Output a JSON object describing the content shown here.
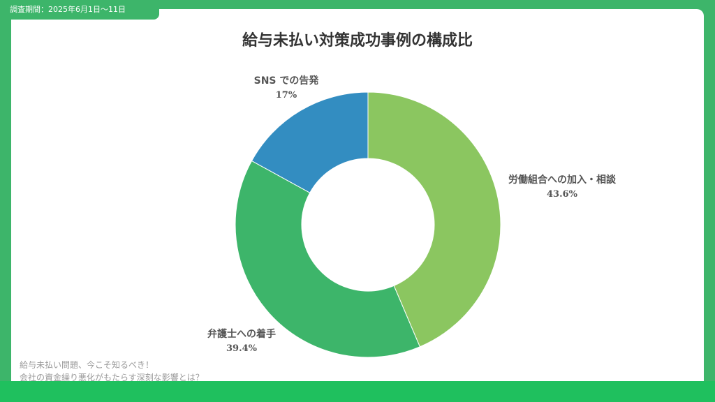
{
  "survey_period": "調査期間：2025年6月1日〜11日",
  "source_lines": [
    "給与未払い問題、今こそ知るべき！",
    "会社の資金繰り悪化がもたらす深刻な影響とは？"
  ],
  "chart_data": {
    "type": "pie",
    "donut": true,
    "title": "給与未払い対策成功事例の構成比",
    "slices": [
      {
        "label": "労働組合への加入・相談",
        "value": 43.6,
        "display": "43.6%",
        "color": "#8bc660"
      },
      {
        "label": "弁護士への着手",
        "value": 39.4,
        "display": "39.4%",
        "color": "#3db56a"
      },
      {
        "label": "SNS での告発",
        "value": 17,
        "display": "17%",
        "color": "#338dc1"
      }
    ]
  }
}
